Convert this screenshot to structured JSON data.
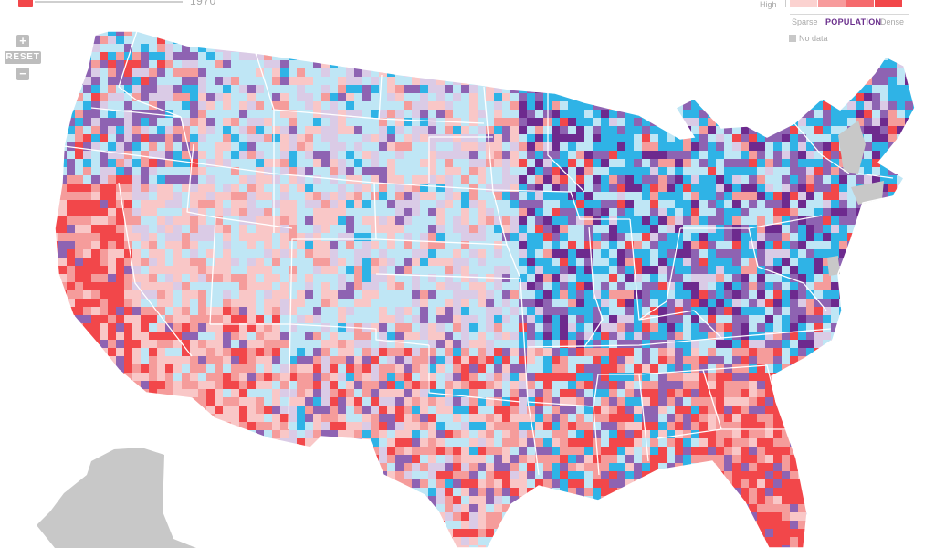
{
  "slider": {
    "year_label": "1970"
  },
  "zoom": {
    "zoom_in_label": "+",
    "reset_label": "RESET",
    "zoom_out_label": "−"
  },
  "legend": {
    "high_label": "High",
    "sparse_label": "Sparse",
    "population_label": "POPULATION",
    "dense_label": "Dense",
    "no_data_label": "No data",
    "scale_colors": [
      "#fbd2d0",
      "#f79b9c",
      "#f56a6d",
      "#f2474a"
    ]
  },
  "colors": {
    "light_pink": "#f9c7c7",
    "pink": "#f59c9b",
    "red": "#f2474a",
    "light_blue": "#bfe6f5",
    "cyan": "#2fb3e6",
    "lavender": "#dacbe6",
    "purple": "#8e63b2",
    "dark_purple": "#6d2a8e",
    "no_data": "#c8c8c8"
  }
}
